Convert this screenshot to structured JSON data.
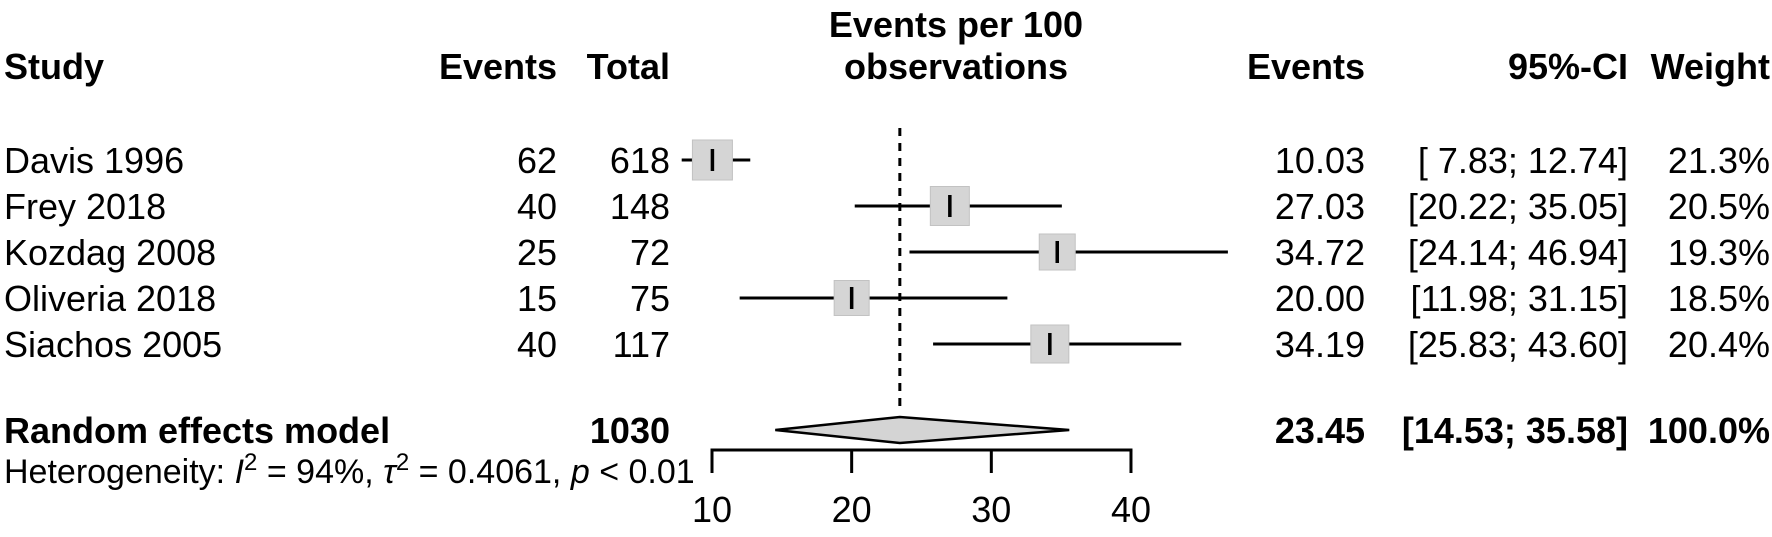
{
  "chart_data": {
    "type": "forest",
    "plot_title_line1": "Events per 100",
    "plot_title_line2": "observations",
    "columns": {
      "study": "Study",
      "events": "Events",
      "total": "Total",
      "events_rate": "Events",
      "ci": "95%-CI",
      "weight": "Weight"
    },
    "studies": [
      {
        "name": "Davis 1996",
        "events": "62",
        "total": "618",
        "rate_label": "10.03",
        "rate": 10.03,
        "lower": 7.83,
        "upper": 12.74,
        "ci_label": "[ 7.83; 12.74]",
        "weight_label": "21.3%",
        "weight": 21.3
      },
      {
        "name": "Frey 2018",
        "events": "40",
        "total": "148",
        "rate_label": "27.03",
        "rate": 27.03,
        "lower": 20.22,
        "upper": 35.05,
        "ci_label": "[20.22; 35.05]",
        "weight_label": "20.5%",
        "weight": 20.5
      },
      {
        "name": "Kozdag 2008",
        "events": "25",
        "total": "72",
        "rate_label": "34.72",
        "rate": 34.72,
        "lower": 24.14,
        "upper": 46.94,
        "ci_label": "[24.14; 46.94]",
        "weight_label": "19.3%",
        "weight": 19.3
      },
      {
        "name": "Oliveria 2018",
        "events": "15",
        "total": "75",
        "rate_label": "20.00",
        "rate": 20.0,
        "lower": 11.98,
        "upper": 31.15,
        "ci_label": "[11.98; 31.15]",
        "weight_label": "18.5%",
        "weight": 18.5
      },
      {
        "name": "Siachos 2005",
        "events": "40",
        "total": "117",
        "rate_label": "34.19",
        "rate": 34.19,
        "lower": 25.83,
        "upper": 43.6,
        "ci_label": "[25.83; 43.60]",
        "weight_label": "20.4%",
        "weight": 20.4
      }
    ],
    "pooled": {
      "name": "Random effects model",
      "total": "1030",
      "rate_label": "23.45",
      "rate": 23.45,
      "lower": 14.53,
      "upper": 35.58,
      "ci_label": "[14.53; 35.58]",
      "weight_label": "100.0%"
    },
    "heterogeneity": {
      "prefix": "Heterogeneity: ",
      "i_label": "I",
      "i_sup": "2",
      "i_value": " = 94%, ",
      "tau_label": "τ",
      "tau_sup": "2",
      "tau_value": " = 0.4061, ",
      "p_label": "p",
      "p_value": " < 0.01"
    },
    "axis": {
      "ticks": [
        "10",
        "20",
        "30",
        "40"
      ],
      "xmin": 10,
      "xmax": 40
    },
    "reference_line": 23.45,
    "colors": {
      "square_fill": "#d5d5d5",
      "square_edge": "#c2c2c2",
      "diamond_fill": "#d4d4d4",
      "line": "#000000"
    }
  }
}
